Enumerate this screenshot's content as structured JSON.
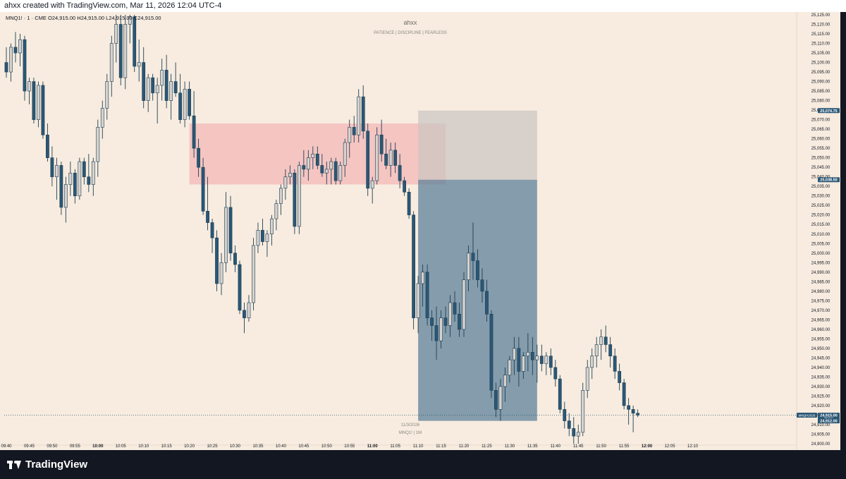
{
  "header": {
    "attribution": "ahxx created with TradingView.com, Mar 11, 2026 12:04 UTC-4"
  },
  "legend": {
    "symbol_line": "MNQ1! · 1 · CME  O24,915.00  H24,915.00  L24,915.00  C24,915.00"
  },
  "watermark": {
    "title": "ahxx",
    "tagline": "PATIENCE  |  DISCIPLINE  |  FEARLESS",
    "date": "11/3/2026",
    "symbol": "MNQ1!  |  1M"
  },
  "footer": {
    "brand": "TradingView"
  },
  "colors": {
    "background": "#f7ecdf",
    "up_candle": "#d6d2cd",
    "down_candle": "#2b5775",
    "supply_zone": "#f4b5b5",
    "stop_zone": "#cbc5c0",
    "target_zone": "#5e8299"
  },
  "chart_data": {
    "type": "candlestick",
    "y_axis": {
      "min": 24900,
      "max": 25125,
      "step": 5,
      "position": "right"
    },
    "x_axis": {
      "labels": [
        "09:40",
        "09:45",
        "09:50",
        "09:55",
        "10:00",
        "10:05",
        "10:10",
        "10:15",
        "10:20",
        "10:25",
        "10:30",
        "10:35",
        "10:40",
        "10:45",
        "10:50",
        "10:55",
        "11:00",
        "11:05",
        "11:10",
        "11:15",
        "11:20",
        "11:25",
        "11:30",
        "11:35",
        "11:40",
        "11:45",
        "11:50",
        "11:55",
        "12:00",
        "12:05",
        "12:10"
      ]
    },
    "price_labels": [
      {
        "value": 25074.75,
        "text": "25,074.75"
      },
      {
        "value": 25038.5,
        "text": "25,038.50"
      },
      {
        "value": 24915.0,
        "text": "24,915.00",
        "sub": "00:56",
        "tag": "MNQH2026"
      },
      {
        "value": 24912.0,
        "text": "24,912.00"
      }
    ],
    "last_price": 24915.0,
    "zones": [
      {
        "name": "supply",
        "from_time": "10:20",
        "to_time": "11:16",
        "top": 25068,
        "bottom": 25036
      },
      {
        "name": "stop",
        "from_time": "11:10",
        "to_time": "11:36",
        "top": 25074.75,
        "bottom": 25038.5
      },
      {
        "name": "target",
        "from_time": "11:10",
        "to_time": "11:36",
        "top": 25038.5,
        "bottom": 24912
      }
    ],
    "candles": [
      {
        "o": 25100,
        "h": 25108,
        "l": 25092,
        "c": 25095
      },
      {
        "o": 25095,
        "h": 25110,
        "l": 25090,
        "c": 25108
      },
      {
        "o": 25108,
        "h": 25116,
        "l": 25100,
        "c": 25105
      },
      {
        "o": 25105,
        "h": 25115,
        "l": 25098,
        "c": 25112
      },
      {
        "o": 25112,
        "h": 25114,
        "l": 25080,
        "c": 25085
      },
      {
        "o": 25085,
        "h": 25092,
        "l": 25078,
        "c": 25090
      },
      {
        "o": 25090,
        "h": 25092,
        "l": 25068,
        "c": 25070
      },
      {
        "o": 25070,
        "h": 25090,
        "l": 25066,
        "c": 25088
      },
      {
        "o": 25088,
        "h": 25090,
        "l": 25060,
        "c": 25062
      },
      {
        "o": 25062,
        "h": 25068,
        "l": 25048,
        "c": 25050
      },
      {
        "o": 25050,
        "h": 25056,
        "l": 25035,
        "c": 25040
      },
      {
        "o": 25040,
        "h": 25050,
        "l": 25028,
        "c": 25046
      },
      {
        "o": 25046,
        "h": 25048,
        "l": 25020,
        "c": 25024
      },
      {
        "o": 25024,
        "h": 25040,
        "l": 25016,
        "c": 25036
      },
      {
        "o": 25036,
        "h": 25048,
        "l": 25030,
        "c": 25042
      },
      {
        "o": 25042,
        "h": 25044,
        "l": 25026,
        "c": 25030
      },
      {
        "o": 25030,
        "h": 25050,
        "l": 25028,
        "c": 25048
      },
      {
        "o": 25048,
        "h": 25050,
        "l": 25036,
        "c": 25040
      },
      {
        "o": 25040,
        "h": 25052,
        "l": 25032,
        "c": 25036
      },
      {
        "o": 25036,
        "h": 25050,
        "l": 25030,
        "c": 25048
      },
      {
        "o": 25048,
        "h": 25070,
        "l": 25040,
        "c": 25066
      },
      {
        "o": 25066,
        "h": 25080,
        "l": 25060,
        "c": 25076
      },
      {
        "o": 25076,
        "h": 25094,
        "l": 25070,
        "c": 25090
      },
      {
        "o": 25090,
        "h": 25114,
        "l": 25082,
        "c": 25110
      },
      {
        "o": 25110,
        "h": 25125,
        "l": 25100,
        "c": 25120
      },
      {
        "o": 25120,
        "h": 25125,
        "l": 25088,
        "c": 25092
      },
      {
        "o": 25092,
        "h": 25125,
        "l": 25086,
        "c": 25120
      },
      {
        "o": 25120,
        "h": 25125,
        "l": 25110,
        "c": 25124
      },
      {
        "o": 25124,
        "h": 25125,
        "l": 25095,
        "c": 25098
      },
      {
        "o": 25098,
        "h": 25112,
        "l": 25090,
        "c": 25100
      },
      {
        "o": 25100,
        "h": 25108,
        "l": 25076,
        "c": 25080
      },
      {
        "o": 25080,
        "h": 25094,
        "l": 25074,
        "c": 25092
      },
      {
        "o": 25092,
        "h": 25094,
        "l": 25080,
        "c": 25084
      },
      {
        "o": 25084,
        "h": 25092,
        "l": 25068,
        "c": 25088
      },
      {
        "o": 25088,
        "h": 25102,
        "l": 25080,
        "c": 25096
      },
      {
        "o": 25096,
        "h": 25104,
        "l": 25076,
        "c": 25080
      },
      {
        "o": 25080,
        "h": 25094,
        "l": 25070,
        "c": 25090
      },
      {
        "o": 25090,
        "h": 25100,
        "l": 25082,
        "c": 25084
      },
      {
        "o": 25084,
        "h": 25094,
        "l": 25068,
        "c": 25070
      },
      {
        "o": 25070,
        "h": 25090,
        "l": 25066,
        "c": 25086
      },
      {
        "o": 25086,
        "h": 25090,
        "l": 25070,
        "c": 25072
      },
      {
        "o": 25072,
        "h": 25085,
        "l": 25050,
        "c": 25055
      },
      {
        "o": 25055,
        "h": 25060,
        "l": 25040,
        "c": 25045
      },
      {
        "o": 25045,
        "h": 25050,
        "l": 25020,
        "c": 25022
      },
      {
        "o": 25022,
        "h": 25040,
        "l": 25012,
        "c": 25016
      },
      {
        "o": 25016,
        "h": 25018,
        "l": 25000,
        "c": 25008
      },
      {
        "o": 25008,
        "h": 25012,
        "l": 24980,
        "c": 24984
      },
      {
        "o": 24984,
        "h": 25000,
        "l": 24978,
        "c": 24995
      },
      {
        "o": 24995,
        "h": 25032,
        "l": 24990,
        "c": 25024
      },
      {
        "o": 25024,
        "h": 25030,
        "l": 24996,
        "c": 25000
      },
      {
        "o": 25000,
        "h": 25004,
        "l": 24990,
        "c": 24994
      },
      {
        "o": 24994,
        "h": 24996,
        "l": 24968,
        "c": 24970
      },
      {
        "o": 24970,
        "h": 24974,
        "l": 24958,
        "c": 24966
      },
      {
        "o": 24966,
        "h": 24978,
        "l": 24964,
        "c": 24974
      },
      {
        "o": 24974,
        "h": 25008,
        "l": 24970,
        "c": 25004
      },
      {
        "o": 25004,
        "h": 25016,
        "l": 25000,
        "c": 25012
      },
      {
        "o": 25012,
        "h": 25018,
        "l": 25004,
        "c": 25006
      },
      {
        "o": 25006,
        "h": 25012,
        "l": 24998,
        "c": 25010
      },
      {
        "o": 25010,
        "h": 25020,
        "l": 25004,
        "c": 25018
      },
      {
        "o": 25018,
        "h": 25028,
        "l": 25012,
        "c": 25026
      },
      {
        "o": 25026,
        "h": 25036,
        "l": 25020,
        "c": 25034
      },
      {
        "o": 25034,
        "h": 25044,
        "l": 25028,
        "c": 25040
      },
      {
        "o": 25040,
        "h": 25046,
        "l": 25036,
        "c": 25042
      },
      {
        "o": 25042,
        "h": 25044,
        "l": 25010,
        "c": 25014
      },
      {
        "o": 25014,
        "h": 25048,
        "l": 25010,
        "c": 25046
      },
      {
        "o": 25046,
        "h": 25054,
        "l": 25040,
        "c": 25044
      },
      {
        "o": 25044,
        "h": 25054,
        "l": 25038,
        "c": 25050
      },
      {
        "o": 25050,
        "h": 25056,
        "l": 25044,
        "c": 25052
      },
      {
        "o": 25052,
        "h": 25056,
        "l": 25044,
        "c": 25046
      },
      {
        "o": 25046,
        "h": 25052,
        "l": 25040,
        "c": 25042
      },
      {
        "o": 25042,
        "h": 25048,
        "l": 25036,
        "c": 25044
      },
      {
        "o": 25044,
        "h": 25050,
        "l": 25036,
        "c": 25048
      },
      {
        "o": 25048,
        "h": 25050,
        "l": 25036,
        "c": 25038
      },
      {
        "o": 25038,
        "h": 25048,
        "l": 25036,
        "c": 25046
      },
      {
        "o": 25046,
        "h": 25060,
        "l": 25040,
        "c": 25058
      },
      {
        "o": 25058,
        "h": 25070,
        "l": 25050,
        "c": 25066
      },
      {
        "o": 25066,
        "h": 25072,
        "l": 25058,
        "c": 25062
      },
      {
        "o": 25062,
        "h": 25086,
        "l": 25058,
        "c": 25082
      },
      {
        "o": 25082,
        "h": 25088,
        "l": 25060,
        "c": 25064
      },
      {
        "o": 25064,
        "h": 25068,
        "l": 25030,
        "c": 25034
      },
      {
        "o": 25034,
        "h": 25040,
        "l": 25026,
        "c": 25038
      },
      {
        "o": 25038,
        "h": 25066,
        "l": 25036,
        "c": 25062
      },
      {
        "o": 25062,
        "h": 25070,
        "l": 25048,
        "c": 25052
      },
      {
        "o": 25052,
        "h": 25060,
        "l": 25044,
        "c": 25046
      },
      {
        "o": 25046,
        "h": 25058,
        "l": 25040,
        "c": 25054
      },
      {
        "o": 25054,
        "h": 25058,
        "l": 25042,
        "c": 25046
      },
      {
        "o": 25046,
        "h": 25052,
        "l": 25034,
        "c": 25038
      },
      {
        "o": 25038,
        "h": 25040,
        "l": 25030,
        "c": 25032
      },
      {
        "o": 25032,
        "h": 25034,
        "l": 25018,
        "c": 25020
      },
      {
        "o": 25020,
        "h": 25022,
        "l": 24960,
        "c": 24966
      },
      {
        "o": 24966,
        "h": 24988,
        "l": 24958,
        "c": 24984
      },
      {
        "o": 24984,
        "h": 24994,
        "l": 24972,
        "c": 24990
      },
      {
        "o": 24990,
        "h": 24994,
        "l": 24962,
        "c": 24966
      },
      {
        "o": 24966,
        "h": 24970,
        "l": 24954,
        "c": 24962
      },
      {
        "o": 24962,
        "h": 24972,
        "l": 24944,
        "c": 24954
      },
      {
        "o": 24954,
        "h": 24970,
        "l": 24950,
        "c": 24966
      },
      {
        "o": 24966,
        "h": 24972,
        "l": 24958,
        "c": 24962
      },
      {
        "o": 24962,
        "h": 24978,
        "l": 24956,
        "c": 24974
      },
      {
        "o": 24974,
        "h": 24980,
        "l": 24964,
        "c": 24968
      },
      {
        "o": 24968,
        "h": 24974,
        "l": 24956,
        "c": 24960
      },
      {
        "o": 24960,
        "h": 24990,
        "l": 24956,
        "c": 24986
      },
      {
        "o": 24986,
        "h": 25004,
        "l": 24980,
        "c": 25000
      },
      {
        "o": 25000,
        "h": 25016,
        "l": 24986,
        "c": 24996
      },
      {
        "o": 24996,
        "h": 25002,
        "l": 24982,
        "c": 24986
      },
      {
        "o": 24986,
        "h": 24992,
        "l": 24974,
        "c": 24980
      },
      {
        "o": 24980,
        "h": 24986,
        "l": 24964,
        "c": 24968
      },
      {
        "o": 24968,
        "h": 24970,
        "l": 24924,
        "c": 24928
      },
      {
        "o": 24928,
        "h": 24932,
        "l": 24914,
        "c": 24918
      },
      {
        "o": 24918,
        "h": 24934,
        "l": 24912,
        "c": 24930
      },
      {
        "o": 24930,
        "h": 24940,
        "l": 24922,
        "c": 24936
      },
      {
        "o": 24936,
        "h": 24946,
        "l": 24932,
        "c": 24944
      },
      {
        "o": 24944,
        "h": 24956,
        "l": 24936,
        "c": 24950
      },
      {
        "o": 24950,
        "h": 24956,
        "l": 24930,
        "c": 24938
      },
      {
        "o": 24938,
        "h": 24948,
        "l": 24934,
        "c": 24946
      },
      {
        "o": 24946,
        "h": 24958,
        "l": 24938,
        "c": 24948
      },
      {
        "o": 24948,
        "h": 24956,
        "l": 24936,
        "c": 24944
      },
      {
        "o": 24944,
        "h": 24952,
        "l": 24932,
        "c": 24946
      },
      {
        "o": 24946,
        "h": 24952,
        "l": 24938,
        "c": 24942
      },
      {
        "o": 24942,
        "h": 24948,
        "l": 24936,
        "c": 24946
      },
      {
        "o": 24946,
        "h": 24950,
        "l": 24936,
        "c": 24940
      },
      {
        "o": 24940,
        "h": 24944,
        "l": 24930,
        "c": 24934
      },
      {
        "o": 24934,
        "h": 24936,
        "l": 24916,
        "c": 24918
      },
      {
        "o": 24918,
        "h": 24922,
        "l": 24908,
        "c": 24912
      },
      {
        "o": 24912,
        "h": 24916,
        "l": 24904,
        "c": 24908
      },
      {
        "o": 24908,
        "h": 24914,
        "l": 24900,
        "c": 24904
      },
      {
        "o": 24904,
        "h": 24910,
        "l": 24900,
        "c": 24906
      },
      {
        "o": 24906,
        "h": 24932,
        "l": 24904,
        "c": 24928
      },
      {
        "o": 24928,
        "h": 24944,
        "l": 24924,
        "c": 24940
      },
      {
        "o": 24940,
        "h": 24950,
        "l": 24934,
        "c": 24946
      },
      {
        "o": 24946,
        "h": 24956,
        "l": 24940,
        "c": 24952
      },
      {
        "o": 24952,
        "h": 24960,
        "l": 24944,
        "c": 24956
      },
      {
        "o": 24956,
        "h": 24962,
        "l": 24948,
        "c": 24952
      },
      {
        "o": 24952,
        "h": 24956,
        "l": 24940,
        "c": 24946
      },
      {
        "o": 24946,
        "h": 24950,
        "l": 24934,
        "c": 24938
      },
      {
        "o": 24938,
        "h": 24942,
        "l": 24928,
        "c": 24932
      },
      {
        "o": 24932,
        "h": 24934,
        "l": 24918,
        "c": 24920
      },
      {
        "o": 24920,
        "h": 24924,
        "l": 24910,
        "c": 24918
      },
      {
        "o": 24918,
        "h": 24920,
        "l": 24906,
        "c": 24916
      },
      {
        "o": 24916,
        "h": 24918,
        "l": 24914,
        "c": 24915
      }
    ]
  }
}
